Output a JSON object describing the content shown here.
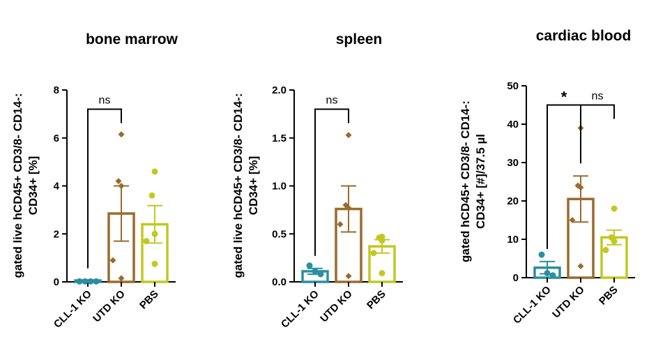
{
  "colors": {
    "CLL-1 KO": "#2a8fa0",
    "UTD KO": "#9a6a2e",
    "PBS": "#c3c722",
    "axis": "#000000"
  },
  "chart_data": [
    {
      "type": "bar",
      "title": "bone marrow",
      "ylabel_lines": [
        "gated live hCD45+ CD3/8- CD14-:",
        "CD34+ [%]"
      ],
      "categories": [
        "CLL-1 KO",
        "UTD KO",
        "PBS"
      ],
      "ylim": [
        0,
        8
      ],
      "yticks": [
        0,
        2,
        4,
        6,
        8
      ],
      "ytick_labels": [
        "0",
        "2",
        "4",
        "6",
        "8"
      ],
      "means": [
        0.02,
        2.85,
        2.4
      ],
      "sem": [
        0.02,
        1.15,
        0.78
      ],
      "points": [
        [
          0.02,
          0.02,
          0.02,
          0.02
        ],
        [
          6.15,
          4.2,
          4.0,
          0.9,
          0.15
        ],
        [
          4.6,
          3.6,
          2.0,
          1.7,
          0.75
        ]
      ],
      "annotations": [
        {
          "from": 0,
          "to": 1,
          "label": "ns",
          "y": 7.2
        }
      ]
    },
    {
      "type": "bar",
      "title": "spleen",
      "ylabel_lines": [
        "gated live hCD45+ CD3/8- CD14-:",
        "CD34+ [%]"
      ],
      "categories": [
        "CLL-1 KO",
        "UTD KO",
        "PBS"
      ],
      "ylim": [
        0,
        2.0
      ],
      "yticks": [
        0,
        0.5,
        1.0,
        1.5,
        2.0
      ],
      "ytick_labels": [
        "0.0",
        "0.5",
        "1.0",
        "1.5",
        "2.0"
      ],
      "means": [
        0.11,
        0.76,
        0.37
      ],
      "sem": [
        0.03,
        0.24,
        0.07
      ],
      "points": [
        [
          0.17,
          0.11,
          0.08
        ],
        [
          1.53,
          0.8,
          0.77,
          0.6,
          0.06
        ],
        [
          0.47,
          0.46,
          0.43,
          0.3,
          0.09
        ]
      ],
      "annotations": [
        {
          "from": 0,
          "to": 1,
          "label": "ns",
          "y": 1.8
        }
      ]
    },
    {
      "type": "bar",
      "title": "cardiac blood",
      "ylabel_lines": [
        "gated hCD45+ CD3/8- CD14-:",
        "CD34+ [#]/37.5 µl"
      ],
      "categories": [
        "CLL-1 KO",
        "UTD KO",
        "PBS"
      ],
      "ylim": [
        0,
        50
      ],
      "yticks": [
        0,
        10,
        20,
        30,
        40,
        50
      ],
      "ytick_labels": [
        "0",
        "10",
        "20",
        "30",
        "40",
        "50"
      ],
      "means": [
        2.6,
        20.5,
        10.5
      ],
      "sem": [
        1.6,
        6.0,
        1.9
      ],
      "points": [
        [
          6.0,
          1.2,
          0.6
        ],
        [
          39.0,
          24.0,
          23.5,
          15.0,
          3.0
        ],
        [
          18.0,
          10.5,
          9.5,
          7.2
        ]
      ],
      "annotations": [
        {
          "from": 0,
          "to": 1,
          "label": "*",
          "y": 45
        },
        {
          "from": 1,
          "to": 2,
          "label": "ns",
          "y": 45
        }
      ]
    }
  ]
}
